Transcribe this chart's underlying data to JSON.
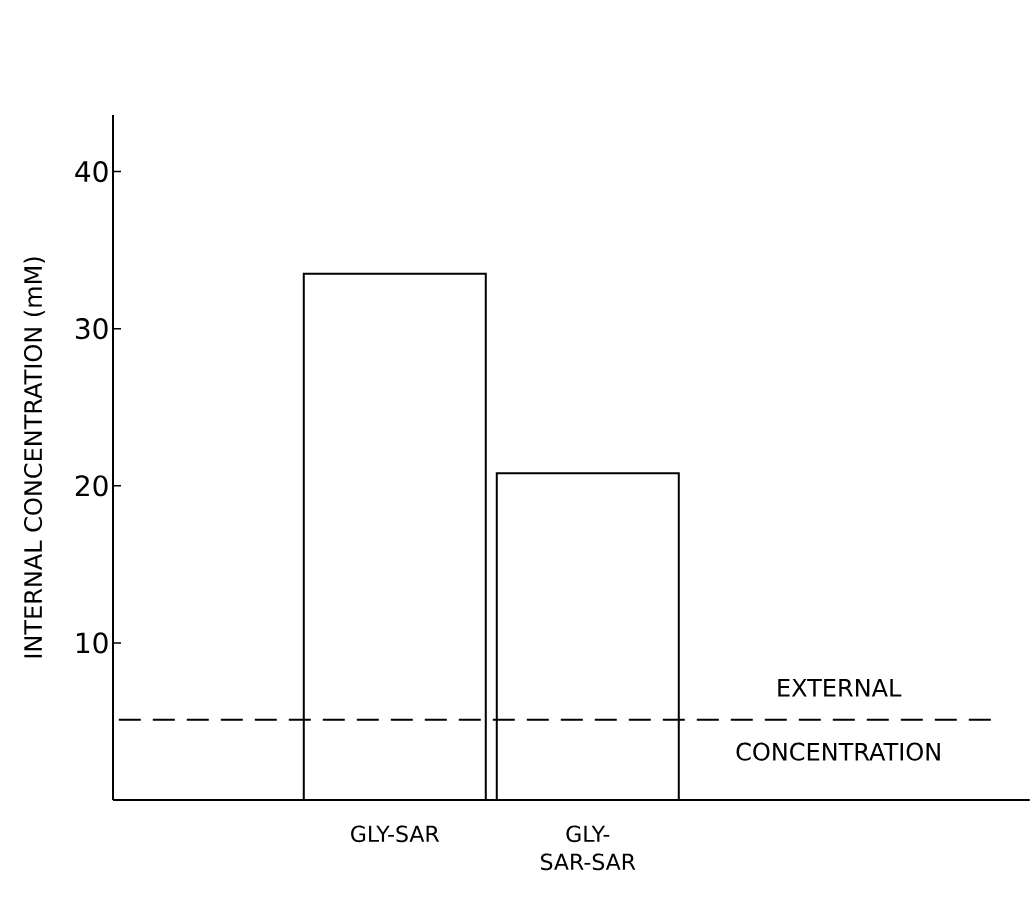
{
  "chart_data": {
    "type": "bar",
    "ylabel": "INTERNAL CONCENTRATION (mM)",
    "categories": [
      "GLY-SAR",
      "GLY-SAR-SAR"
    ],
    "values": [
      33.5,
      20.8
    ],
    "color": "#ffffff",
    "ylim": [
      0,
      43.6
    ],
    "yticks": [
      10,
      20,
      30,
      40
    ],
    "ref_lines": [
      {
        "axis": "y",
        "value": 5.1,
        "label": "EXTERNAL CONCENTRATION",
        "line_style": "dashed",
        "color": "#000000"
      }
    ]
  }
}
